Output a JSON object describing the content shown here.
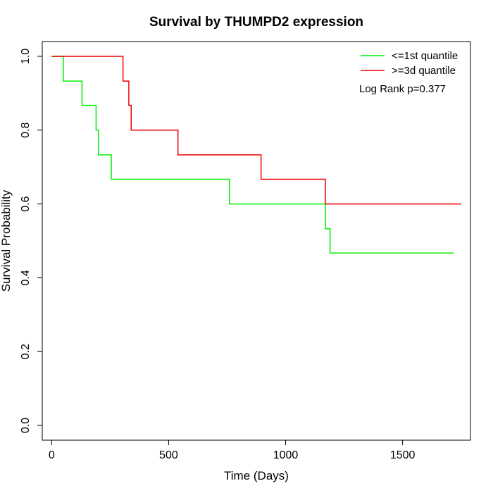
{
  "chart_data": {
    "type": "line",
    "title": "Survival by THUMPD2 expression",
    "xlabel": "Time (Days)",
    "ylabel": "Survival Probability",
    "xlim": [
      -40,
      1790
    ],
    "ylim": [
      -0.04,
      1.04
    ],
    "x_ticks": [
      0,
      500,
      1000,
      1500
    ],
    "y_ticks": [
      0.0,
      0.2,
      0.4,
      0.6,
      0.8,
      1.0
    ],
    "x_tick_labels": [
      "0",
      "500",
      "1000",
      "1500"
    ],
    "y_tick_labels": [
      "0.0",
      "0.2",
      "0.4",
      "0.6",
      "0.8",
      "1.0"
    ],
    "grid": false,
    "legend_position": "top-right",
    "series": [
      {
        "name": "<=1st quantile",
        "color": "#00ee00",
        "step": true,
        "points": [
          [
            0,
            1.0
          ],
          [
            50,
            1.0
          ],
          [
            50,
            0.933
          ],
          [
            130,
            0.933
          ],
          [
            130,
            0.867
          ],
          [
            190,
            0.867
          ],
          [
            190,
            0.8
          ],
          [
            200,
            0.8
          ],
          [
            200,
            0.733
          ],
          [
            255,
            0.733
          ],
          [
            255,
            0.667
          ],
          [
            760,
            0.667
          ],
          [
            760,
            0.6
          ],
          [
            1170,
            0.6
          ],
          [
            1170,
            0.533
          ],
          [
            1190,
            0.533
          ],
          [
            1190,
            0.467
          ],
          [
            1720,
            0.467
          ]
        ]
      },
      {
        "name": ">=3d quantile",
        "color": "#ee0000",
        "step": true,
        "points": [
          [
            0,
            1.0
          ],
          [
            305,
            1.0
          ],
          [
            305,
            0.933
          ],
          [
            330,
            0.933
          ],
          [
            330,
            0.867
          ],
          [
            340,
            0.867
          ],
          [
            340,
            0.8
          ],
          [
            540,
            0.8
          ],
          [
            540,
            0.733
          ],
          [
            895,
            0.733
          ],
          [
            895,
            0.667
          ],
          [
            1170,
            0.667
          ],
          [
            1170,
            0.6
          ],
          [
            1750,
            0.6
          ]
        ]
      }
    ],
    "annotation": "Log Rank p=0.377"
  }
}
